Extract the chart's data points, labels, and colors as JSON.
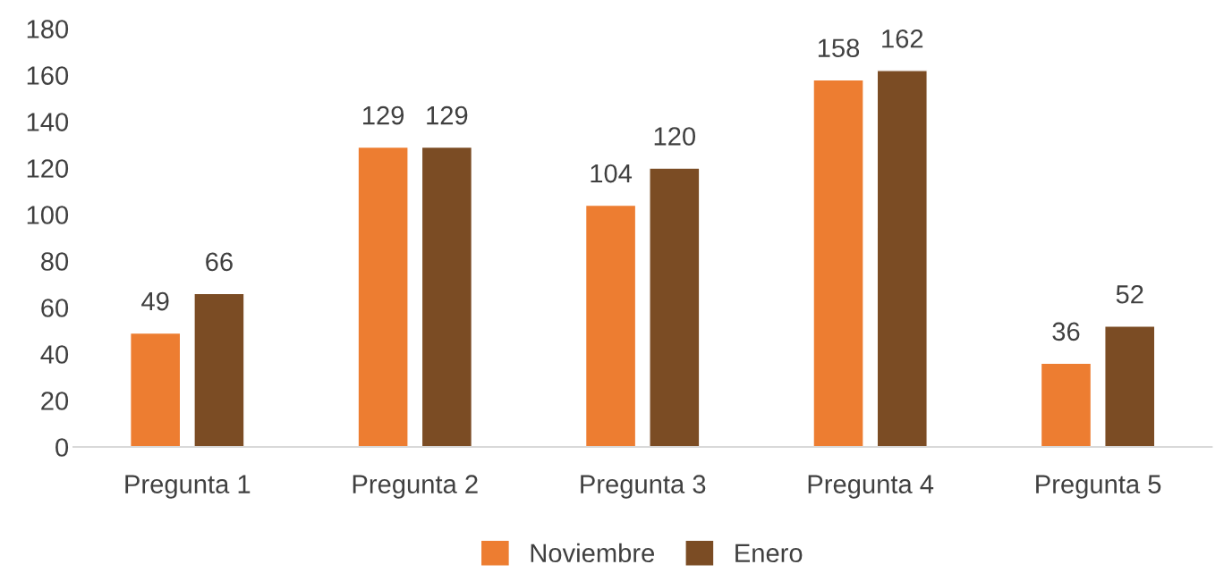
{
  "chart_data": {
    "type": "bar",
    "categories": [
      "Pregunta 1",
      "Pregunta 2",
      "Pregunta 3",
      "Pregunta 4",
      "Pregunta 5"
    ],
    "series": [
      {
        "name": "Noviembre",
        "color": "#ed7d31",
        "values": [
          49,
          129,
          104,
          158,
          36
        ]
      },
      {
        "name": "Enero",
        "color": "#7b4c24",
        "values": [
          66,
          129,
          120,
          162,
          52
        ]
      }
    ],
    "ylim": [
      0,
      180
    ],
    "yticks": [
      0,
      20,
      40,
      60,
      80,
      100,
      120,
      140,
      160,
      180
    ],
    "grid": false,
    "legend": "bottom",
    "data_labels": true
  }
}
